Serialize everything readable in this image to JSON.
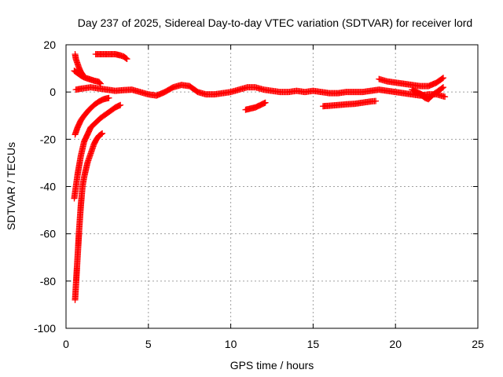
{
  "chart_data": {
    "type": "scatter",
    "title": "Day 237 of 2025, Sidereal Day-to-day VTEC variation (SDTVAR) for receiver lord",
    "xlabel": "GPS time / hours",
    "ylabel": "SDTVAR / TECUs",
    "xlim": [
      0,
      25
    ],
    "ylim": [
      -100,
      20
    ],
    "xticks": [
      0,
      5,
      10,
      15,
      20,
      25
    ],
    "yticks": [
      -100,
      -80,
      -60,
      -40,
      -20,
      0,
      20
    ],
    "grid": true,
    "marker": "+",
    "color": "#ff0000",
    "series": [
      {
        "points": [
          [
            0.55,
            16
          ],
          [
            0.6,
            14
          ],
          [
            0.7,
            12
          ],
          [
            0.8,
            10
          ],
          [
            0.9,
            8.5
          ],
          [
            1.0,
            7.5
          ]
        ]
      },
      {
        "points": [
          [
            0.5,
            9
          ],
          [
            0.7,
            8
          ],
          [
            0.9,
            7
          ],
          [
            1.1,
            6.2
          ],
          [
            1.4,
            5.5
          ],
          [
            1.7,
            4.8
          ],
          [
            2.0,
            4.3
          ],
          [
            2.1,
            3.5
          ]
        ]
      },
      {
        "points": [
          [
            1.8,
            16
          ],
          [
            2.2,
            16
          ],
          [
            2.6,
            16
          ],
          [
            3.0,
            16
          ],
          [
            3.3,
            15.5
          ],
          [
            3.5,
            15
          ],
          [
            3.7,
            14
          ]
        ]
      },
      {
        "points": [
          [
            0.6,
            1
          ],
          [
            1.0,
            1.5
          ],
          [
            1.5,
            2
          ],
          [
            2.0,
            1.5
          ],
          [
            2.5,
            1
          ],
          [
            3.0,
            0.5
          ],
          [
            3.5,
            0.8
          ],
          [
            4.0,
            1
          ],
          [
            4.5,
            0
          ],
          [
            5.0,
            -1
          ],
          [
            5.5,
            -1.5
          ],
          [
            6.0,
            0
          ],
          [
            6.5,
            2
          ],
          [
            7.0,
            3
          ],
          [
            7.5,
            2.5
          ],
          [
            8.0,
            0
          ],
          [
            8.5,
            -1
          ],
          [
            9.0,
            -1
          ],
          [
            9.5,
            -0.5
          ],
          [
            10.0,
            0
          ],
          [
            10.5,
            1
          ],
          [
            11.0,
            2
          ],
          [
            11.5,
            2
          ],
          [
            12.0,
            1
          ],
          [
            12.5,
            0.5
          ],
          [
            13.0,
            0
          ],
          [
            13.5,
            0
          ],
          [
            14.0,
            0.5
          ],
          [
            14.5,
            0
          ],
          [
            15.0,
            0.5
          ],
          [
            15.5,
            0
          ],
          [
            16.0,
            -0.5
          ],
          [
            16.5,
            -0.5
          ],
          [
            17.0,
            0
          ],
          [
            17.5,
            0
          ],
          [
            18.0,
            0
          ],
          [
            18.5,
            0.5
          ],
          [
            19.0,
            1
          ],
          [
            19.5,
            0.5
          ],
          [
            20.0,
            0
          ],
          [
            20.5,
            -0.5
          ],
          [
            21.0,
            -1
          ],
          [
            21.5,
            -1.5
          ],
          [
            22.0,
            -1
          ],
          [
            22.5,
            -1
          ],
          [
            23.0,
            -2
          ]
        ]
      },
      {
        "points": [
          [
            19.0,
            5.5
          ],
          [
            19.5,
            4.5
          ],
          [
            20.0,
            4
          ],
          [
            20.5,
            3.5
          ],
          [
            21.0,
            3
          ],
          [
            21.5,
            2.5
          ],
          [
            22.0,
            2.5
          ],
          [
            22.5,
            4
          ],
          [
            22.9,
            6
          ]
        ]
      },
      {
        "points": [
          [
            21.5,
            -1
          ],
          [
            21.8,
            -2.5
          ],
          [
            22.0,
            -3
          ],
          [
            22.3,
            -1
          ],
          [
            22.6,
            0.5
          ],
          [
            22.9,
            2
          ]
        ]
      },
      {
        "points": [
          [
            21.0,
            1
          ],
          [
            21.3,
            0
          ],
          [
            21.6,
            -1
          ],
          [
            21.9,
            -2.5
          ]
        ]
      },
      {
        "points": [
          [
            10.9,
            -7.5
          ],
          [
            11.2,
            -7
          ],
          [
            11.5,
            -6.5
          ],
          [
            11.8,
            -5.5
          ],
          [
            12.1,
            -4.5
          ]
        ]
      },
      {
        "points": [
          [
            15.6,
            -6
          ],
          [
            16.0,
            -5.8
          ],
          [
            16.5,
            -5.5
          ],
          [
            17.0,
            -5.2
          ],
          [
            17.5,
            -5
          ],
          [
            18.0,
            -4.5
          ],
          [
            18.5,
            -4
          ],
          [
            18.8,
            -3.8
          ]
        ]
      },
      {
        "points": [
          [
            0.55,
            -18
          ],
          [
            0.7,
            -15
          ],
          [
            0.9,
            -12
          ],
          [
            1.1,
            -10
          ],
          [
            1.4,
            -7.5
          ],
          [
            1.7,
            -5.5
          ],
          [
            2.0,
            -4
          ],
          [
            2.3,
            -3
          ],
          [
            2.6,
            -2.5
          ]
        ]
      },
      {
        "points": [
          [
            0.5,
            -45
          ],
          [
            0.6,
            -40
          ],
          [
            0.7,
            -35
          ],
          [
            0.8,
            -31
          ],
          [
            0.9,
            -27
          ],
          [
            1.0,
            -24
          ],
          [
            1.1,
            -21
          ],
          [
            1.3,
            -18
          ],
          [
            1.5,
            -15
          ],
          [
            1.8,
            -13
          ],
          [
            2.1,
            -11
          ],
          [
            2.4,
            -9.5
          ],
          [
            2.7,
            -8
          ],
          [
            3.0,
            -6.5
          ],
          [
            3.3,
            -5.5
          ]
        ]
      },
      {
        "points": [
          [
            0.55,
            -88
          ],
          [
            0.6,
            -82
          ],
          [
            0.65,
            -76
          ],
          [
            0.7,
            -70
          ],
          [
            0.75,
            -64
          ],
          [
            0.8,
            -58
          ],
          [
            0.85,
            -53
          ],
          [
            0.9,
            -48
          ],
          [
            0.95,
            -44
          ],
          [
            1.0,
            -40
          ],
          [
            1.1,
            -36
          ],
          [
            1.2,
            -33
          ],
          [
            1.3,
            -30
          ],
          [
            1.4,
            -28
          ],
          [
            1.5,
            -26
          ],
          [
            1.6,
            -24
          ],
          [
            1.7,
            -22
          ],
          [
            1.85,
            -20
          ],
          [
            2.0,
            -18.5
          ],
          [
            2.2,
            -17.5
          ]
        ]
      }
    ]
  }
}
